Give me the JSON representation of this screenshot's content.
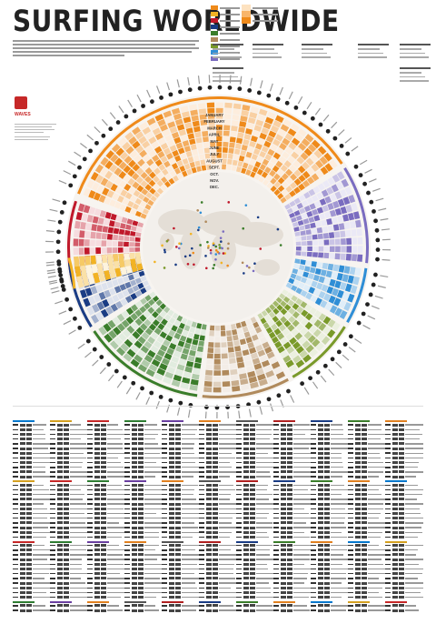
{
  "title": "SURFING WORLDWIDE",
  "colors": {
    "orange": "#ef8a1a",
    "yellow": "#f2b324",
    "red": "#c0182a",
    "navy": "#1a3c84",
    "green": "#3a7d2a",
    "tan": "#b08a5c",
    "olive": "#7a9a2a",
    "blue": "#2f8ed6",
    "purple": "#7a6cc0",
    "map_land": "#e4ded6",
    "map_sea": "#f3f0ec"
  },
  "month_labels": [
    "JANUARY",
    "FEBRUARY",
    "MARCH",
    "APRIL",
    "MAY",
    "JUNE",
    "JULY",
    "AUGUST",
    "SEPT.",
    "OCT.",
    "NOV.",
    "DEC."
  ],
  "map_label": "",
  "legend": {
    "region_colors": [
      "#ef8a1a",
      "#f2b324",
      "#c0182a",
      "#1a3c84",
      "#3a7d2a",
      "#b08a5c",
      "#7a9a2a",
      "#2f8ed6",
      "#7a6cc0"
    ],
    "ramp": [
      "#fde2c0",
      "#f8b56a",
      "#ef8a1a"
    ],
    "top_right_label": "Madagascar Peninsula"
  },
  "logo": {
    "brand": "WAVES"
  },
  "list_headers": [
    "#0077cc",
    "#d4a020",
    "#c62828",
    "#2e7d32",
    "#6a3fa0",
    "#e08020",
    "#555",
    "#b02020",
    "#1a3c84",
    "#3a7d2a",
    "#e08020"
  ]
}
